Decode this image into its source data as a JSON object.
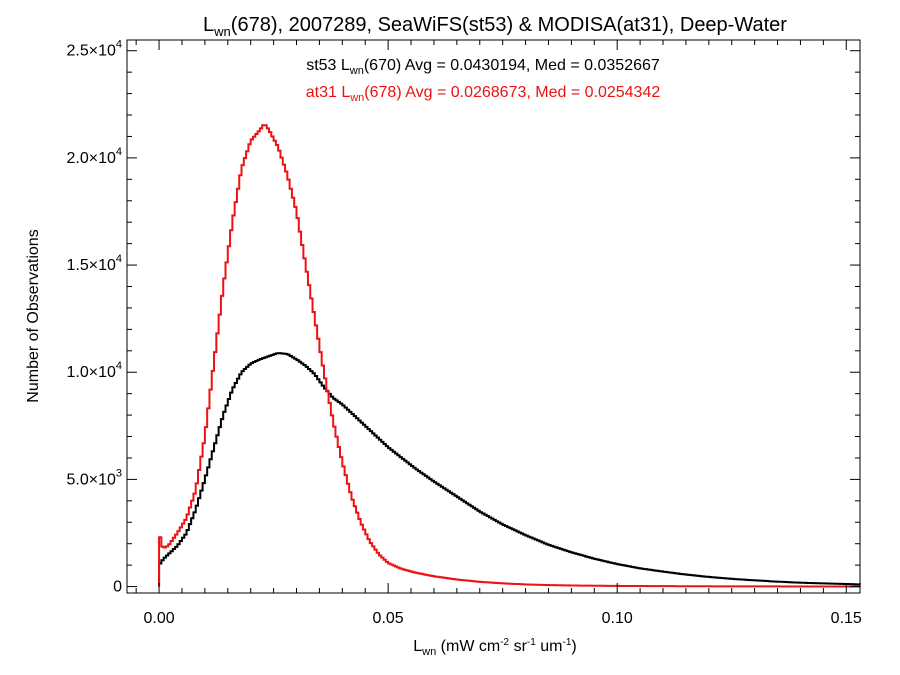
{
  "chart_data": {
    "type": "line",
    "title": {
      "lead": "L",
      "sub": "wn",
      "rest": "(678), 2007289, SeaWiFS(st53) & MODISA(at31), Deep-Water"
    },
    "xlabel": {
      "lead": "L",
      "sub": "wn",
      "p1": " (mW cm",
      "sup1": "-2",
      "p2": " sr",
      "sup2": "-1",
      "p3": " um",
      "sup3": "-1",
      "p4": ")"
    },
    "ylabel": "Number of Observations",
    "xlim": [
      -0.007,
      0.153
    ],
    "ylim": [
      -300,
      25500
    ],
    "x_ticks": [
      {
        "value": 0.0,
        "label": "0.00"
      },
      {
        "value": 0.05,
        "label": "0.05"
      },
      {
        "value": 0.1,
        "label": "0.10"
      },
      {
        "value": 0.15,
        "label": "0.15"
      }
    ],
    "y_ticks": [
      {
        "value": 0,
        "mant": "0",
        "exp": ""
      },
      {
        "value": 5000,
        "mant": "5.0×10",
        "exp": "3"
      },
      {
        "value": 10000,
        "mant": "1.0×10",
        "exp": "4"
      },
      {
        "value": 15000,
        "mant": "1.5×10",
        "exp": "4"
      },
      {
        "value": 20000,
        "mant": "2.0×10",
        "exp": "4"
      },
      {
        "value": 25000,
        "mant": "2.5×10",
        "exp": "4"
      }
    ],
    "series": [
      {
        "color": "#000000",
        "legend": {
          "pre": "st53 L",
          "sub": "wn",
          "post": "(670) Avg = 0.0430194, Med = 0.0352667"
        },
        "x": [
          0.0,
          0.001,
          0.002,
          0.004,
          0.006,
          0.008,
          0.01,
          0.012,
          0.014,
          0.016,
          0.018,
          0.02,
          0.022,
          0.024,
          0.026,
          0.028,
          0.03,
          0.032,
          0.034,
          0.036,
          0.038,
          0.04,
          0.042,
          0.044,
          0.046,
          0.048,
          0.05,
          0.053,
          0.056,
          0.06,
          0.065,
          0.07,
          0.075,
          0.08,
          0.085,
          0.09,
          0.095,
          0.1,
          0.105,
          0.11,
          0.115,
          0.12,
          0.125,
          0.13,
          0.135,
          0.14,
          0.145,
          0.15,
          0.153
        ],
        "y": [
          1000,
          1300,
          1500,
          1900,
          2500,
          3600,
          5000,
          6500,
          8000,
          9200,
          10000,
          10400,
          10600,
          10750,
          10900,
          10850,
          10600,
          10300,
          9900,
          9300,
          8800,
          8500,
          8100,
          7700,
          7300,
          6900,
          6500,
          6000,
          5500,
          4900,
          4200,
          3500,
          2900,
          2400,
          1950,
          1600,
          1300,
          1050,
          850,
          700,
          560,
          450,
          360,
          290,
          230,
          180,
          150,
          120,
          100
        ]
      },
      {
        "color": "#ee1111",
        "legend": {
          "pre": "at31 L",
          "sub": "wn",
          "post": "(678) Avg = 0.0268673, Med = 0.0254342"
        },
        "x": [
          0.0,
          0.0003,
          0.0006,
          0.001,
          0.002,
          0.003,
          0.004,
          0.006,
          0.008,
          0.01,
          0.012,
          0.014,
          0.016,
          0.018,
          0.02,
          0.022,
          0.023,
          0.024,
          0.025,
          0.026,
          0.028,
          0.03,
          0.032,
          0.034,
          0.036,
          0.038,
          0.04,
          0.042,
          0.044,
          0.046,
          0.048,
          0.05,
          0.053,
          0.056,
          0.06,
          0.065,
          0.07,
          0.075,
          0.08,
          0.085,
          0.09,
          0.1,
          0.11,
          0.12,
          0.13,
          0.14,
          0.153
        ],
        "y": [
          2800,
          2200,
          1900,
          1800,
          1900,
          2200,
          2500,
          3200,
          4500,
          7000,
          10500,
          14000,
          17000,
          19500,
          20800,
          21300,
          21600,
          21300,
          20900,
          20500,
          19200,
          17500,
          15000,
          12500,
          10000,
          7700,
          5800,
          4200,
          3000,
          2100,
          1500,
          1100,
          820,
          650,
          480,
          330,
          220,
          150,
          100,
          70,
          50,
          30,
          20,
          12,
          8,
          5,
          3
        ]
      }
    ]
  }
}
